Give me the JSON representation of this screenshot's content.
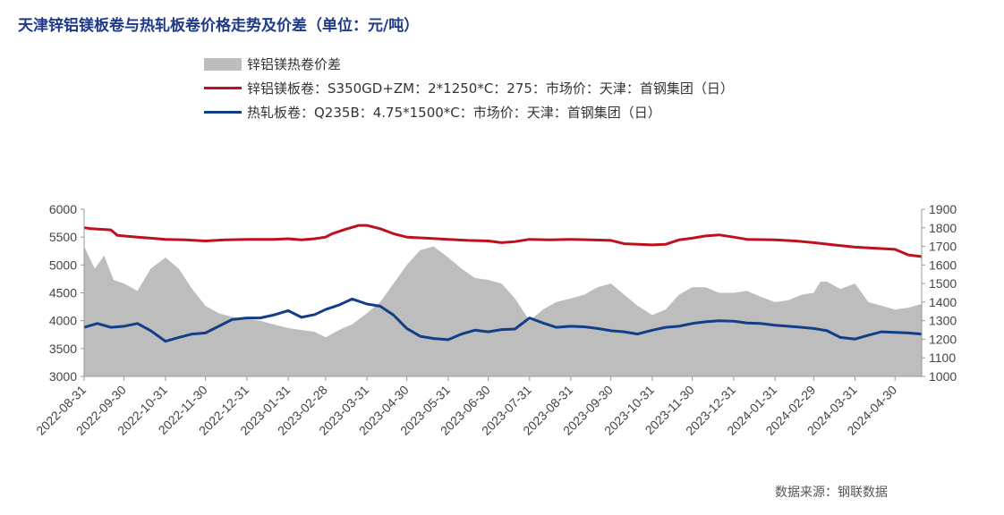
{
  "title": "天津锌铝镁板卷与热轧板卷价格走势及价差（单位：元/吨）",
  "source": "数据来源：钢联数据",
  "colors": {
    "spread": "#bdbdbd",
    "zam": "#c0101e",
    "hrc": "#123e87"
  },
  "chart_data": {
    "type": "line",
    "title": "天津锌铝镁板卷与热轧板卷价格走势及价差（单位：元/吨）",
    "x_ticks": [
      "2022-08-31",
      "2022-09-30",
      "2022-10-31",
      "2022-11-30",
      "2022-12-31",
      "2023-01-31",
      "2023-02-28",
      "2023-03-31",
      "2023-04-30",
      "2023-05-31",
      "2023-06-30",
      "2023-07-31",
      "2023-08-31",
      "2023-09-30",
      "2023-10-31",
      "2023-11-30",
      "2023-12-31",
      "2024-01-31",
      "2024-02-29",
      "2024-03-31",
      "2024-04-30"
    ],
    "x_range": [
      "2022-08-31",
      "2024-05-20"
    ],
    "y_left": {
      "min": 3000,
      "max": 6000,
      "ticks": [
        3000,
        3500,
        4000,
        4500,
        5000,
        5500,
        6000
      ]
    },
    "y_right": {
      "min": 1000,
      "max": 1900,
      "ticks": [
        1000,
        1100,
        1200,
        1300,
        1400,
        1500,
        1600,
        1700,
        1800,
        1900
      ]
    },
    "grid": false,
    "legend_position": "top-left",
    "series": [
      {
        "name": "锌铝镁热卷价差",
        "type": "area",
        "axis": "right",
        "points": [
          [
            "2022-08-31",
            1700
          ],
          [
            "2022-09-08",
            1580
          ],
          [
            "2022-09-15",
            1650
          ],
          [
            "2022-09-22",
            1520
          ],
          [
            "2022-09-30",
            1500
          ],
          [
            "2022-10-10",
            1460
          ],
          [
            "2022-10-20",
            1580
          ],
          [
            "2022-10-31",
            1640
          ],
          [
            "2022-11-10",
            1580
          ],
          [
            "2022-11-20",
            1470
          ],
          [
            "2022-11-30",
            1380
          ],
          [
            "2022-12-10",
            1340
          ],
          [
            "2022-12-20",
            1320
          ],
          [
            "2022-12-31",
            1310
          ],
          [
            "2023-01-10",
            1300
          ],
          [
            "2023-01-20",
            1280
          ],
          [
            "2023-01-31",
            1260
          ],
          [
            "2023-02-10",
            1250
          ],
          [
            "2023-02-20",
            1240
          ],
          [
            "2023-02-28",
            1210
          ],
          [
            "2023-03-10",
            1250
          ],
          [
            "2023-03-20",
            1280
          ],
          [
            "2023-03-31",
            1340
          ],
          [
            "2023-04-10",
            1400
          ],
          [
            "2023-04-20",
            1500
          ],
          [
            "2023-04-30",
            1600
          ],
          [
            "2023-05-10",
            1680
          ],
          [
            "2023-05-20",
            1700
          ],
          [
            "2023-05-31",
            1640
          ],
          [
            "2023-06-10",
            1580
          ],
          [
            "2023-06-20",
            1530
          ],
          [
            "2023-06-30",
            1520
          ],
          [
            "2023-07-10",
            1500
          ],
          [
            "2023-07-20",
            1420
          ],
          [
            "2023-07-31",
            1300
          ],
          [
            "2023-08-10",
            1360
          ],
          [
            "2023-08-20",
            1400
          ],
          [
            "2023-08-31",
            1420
          ],
          [
            "2023-09-10",
            1440
          ],
          [
            "2023-09-20",
            1480
          ],
          [
            "2023-09-30",
            1500
          ],
          [
            "2023-10-10",
            1440
          ],
          [
            "2023-10-20",
            1380
          ],
          [
            "2023-10-31",
            1330
          ],
          [
            "2023-11-10",
            1360
          ],
          [
            "2023-11-20",
            1440
          ],
          [
            "2023-11-30",
            1480
          ],
          [
            "2023-12-10",
            1480
          ],
          [
            "2023-12-20",
            1450
          ],
          [
            "2023-12-31",
            1450
          ],
          [
            "2024-01-10",
            1460
          ],
          [
            "2024-01-20",
            1430
          ],
          [
            "2024-01-31",
            1400
          ],
          [
            "2024-02-10",
            1410
          ],
          [
            "2024-02-20",
            1440
          ],
          [
            "2024-02-29",
            1450
          ],
          [
            "2024-03-05",
            1510
          ],
          [
            "2024-03-10",
            1510
          ],
          [
            "2024-03-20",
            1470
          ],
          [
            "2024-03-31",
            1500
          ],
          [
            "2024-04-10",
            1400
          ],
          [
            "2024-04-20",
            1380
          ],
          [
            "2024-04-30",
            1360
          ],
          [
            "2024-05-10",
            1370
          ],
          [
            "2024-05-20",
            1390
          ]
        ]
      },
      {
        "name": "锌铝镁板卷：S350GD+ZM：2*1250*C：275：市场价：天津：首钢集团（日）",
        "type": "line",
        "axis": "left",
        "points": [
          [
            "2022-08-31",
            5670
          ],
          [
            "2022-09-05",
            5650
          ],
          [
            "2022-09-20",
            5630
          ],
          [
            "2022-09-25",
            5530
          ],
          [
            "2022-10-10",
            5500
          ],
          [
            "2022-10-20",
            5480
          ],
          [
            "2022-10-31",
            5460
          ],
          [
            "2022-11-15",
            5450
          ],
          [
            "2022-11-30",
            5430
          ],
          [
            "2022-12-15",
            5450
          ],
          [
            "2022-12-31",
            5460
          ],
          [
            "2023-01-20",
            5460
          ],
          [
            "2023-01-31",
            5470
          ],
          [
            "2023-02-10",
            5450
          ],
          [
            "2023-02-20",
            5470
          ],
          [
            "2023-02-28",
            5500
          ],
          [
            "2023-03-05",
            5560
          ],
          [
            "2023-03-15",
            5640
          ],
          [
            "2023-03-25",
            5710
          ],
          [
            "2023-03-31",
            5710
          ],
          [
            "2023-04-10",
            5650
          ],
          [
            "2023-04-20",
            5560
          ],
          [
            "2023-04-30",
            5500
          ],
          [
            "2023-05-15",
            5480
          ],
          [
            "2023-05-31",
            5460
          ],
          [
            "2023-06-15",
            5440
          ],
          [
            "2023-06-30",
            5430
          ],
          [
            "2023-07-10",
            5400
          ],
          [
            "2023-07-20",
            5420
          ],
          [
            "2023-07-31",
            5460
          ],
          [
            "2023-08-15",
            5450
          ],
          [
            "2023-08-31",
            5460
          ],
          [
            "2023-09-15",
            5450
          ],
          [
            "2023-09-30",
            5440
          ],
          [
            "2023-10-10",
            5380
          ],
          [
            "2023-10-31",
            5360
          ],
          [
            "2023-11-10",
            5370
          ],
          [
            "2023-11-20",
            5450
          ],
          [
            "2023-11-30",
            5480
          ],
          [
            "2023-12-10",
            5520
          ],
          [
            "2023-12-20",
            5540
          ],
          [
            "2023-12-31",
            5500
          ],
          [
            "2024-01-10",
            5460
          ],
          [
            "2024-01-31",
            5450
          ],
          [
            "2024-02-15",
            5430
          ],
          [
            "2024-02-29",
            5400
          ],
          [
            "2024-03-15",
            5360
          ],
          [
            "2024-03-31",
            5320
          ],
          [
            "2024-04-15",
            5300
          ],
          [
            "2024-04-30",
            5280
          ],
          [
            "2024-05-10",
            5180
          ],
          [
            "2024-05-20",
            5150
          ]
        ]
      },
      {
        "name": "热轧板卷：Q235B：4.75*1500*C：市场价：天津：首钢集团（日）",
        "type": "line",
        "axis": "left",
        "points": [
          [
            "2022-08-31",
            3880
          ],
          [
            "2022-09-10",
            3950
          ],
          [
            "2022-09-20",
            3880
          ],
          [
            "2022-09-30",
            3900
          ],
          [
            "2022-10-10",
            3950
          ],
          [
            "2022-10-20",
            3820
          ],
          [
            "2022-10-31",
            3630
          ],
          [
            "2022-11-10",
            3700
          ],
          [
            "2022-11-20",
            3760
          ],
          [
            "2022-11-30",
            3780
          ],
          [
            "2022-12-10",
            3900
          ],
          [
            "2022-12-20",
            4020
          ],
          [
            "2022-12-31",
            4050
          ],
          [
            "2023-01-10",
            4050
          ],
          [
            "2023-01-20",
            4100
          ],
          [
            "2023-01-31",
            4180
          ],
          [
            "2023-02-10",
            4060
          ],
          [
            "2023-02-20",
            4110
          ],
          [
            "2023-02-28",
            4200
          ],
          [
            "2023-03-10",
            4280
          ],
          [
            "2023-03-20",
            4390
          ],
          [
            "2023-03-31",
            4300
          ],
          [
            "2023-04-10",
            4260
          ],
          [
            "2023-04-20",
            4100
          ],
          [
            "2023-04-30",
            3860
          ],
          [
            "2023-05-10",
            3720
          ],
          [
            "2023-05-20",
            3680
          ],
          [
            "2023-05-31",
            3660
          ],
          [
            "2023-06-10",
            3760
          ],
          [
            "2023-06-20",
            3830
          ],
          [
            "2023-06-30",
            3800
          ],
          [
            "2023-07-10",
            3840
          ],
          [
            "2023-07-20",
            3850
          ],
          [
            "2023-07-31",
            4050
          ],
          [
            "2023-08-10",
            3960
          ],
          [
            "2023-08-20",
            3880
          ],
          [
            "2023-08-31",
            3900
          ],
          [
            "2023-09-10",
            3890
          ],
          [
            "2023-09-20",
            3860
          ],
          [
            "2023-09-30",
            3820
          ],
          [
            "2023-10-10",
            3800
          ],
          [
            "2023-10-20",
            3760
          ],
          [
            "2023-10-31",
            3830
          ],
          [
            "2023-11-10",
            3880
          ],
          [
            "2023-11-20",
            3900
          ],
          [
            "2023-11-30",
            3950
          ],
          [
            "2023-12-10",
            3980
          ],
          [
            "2023-12-20",
            4000
          ],
          [
            "2023-12-31",
            3990
          ],
          [
            "2024-01-10",
            3960
          ],
          [
            "2024-01-20",
            3950
          ],
          [
            "2024-01-31",
            3920
          ],
          [
            "2024-02-10",
            3900
          ],
          [
            "2024-02-20",
            3880
          ],
          [
            "2024-02-29",
            3860
          ],
          [
            "2024-03-10",
            3820
          ],
          [
            "2024-03-20",
            3700
          ],
          [
            "2024-03-31",
            3670
          ],
          [
            "2024-04-10",
            3740
          ],
          [
            "2024-04-20",
            3800
          ],
          [
            "2024-04-30",
            3790
          ],
          [
            "2024-05-10",
            3780
          ],
          [
            "2024-05-20",
            3760
          ]
        ]
      }
    ]
  }
}
